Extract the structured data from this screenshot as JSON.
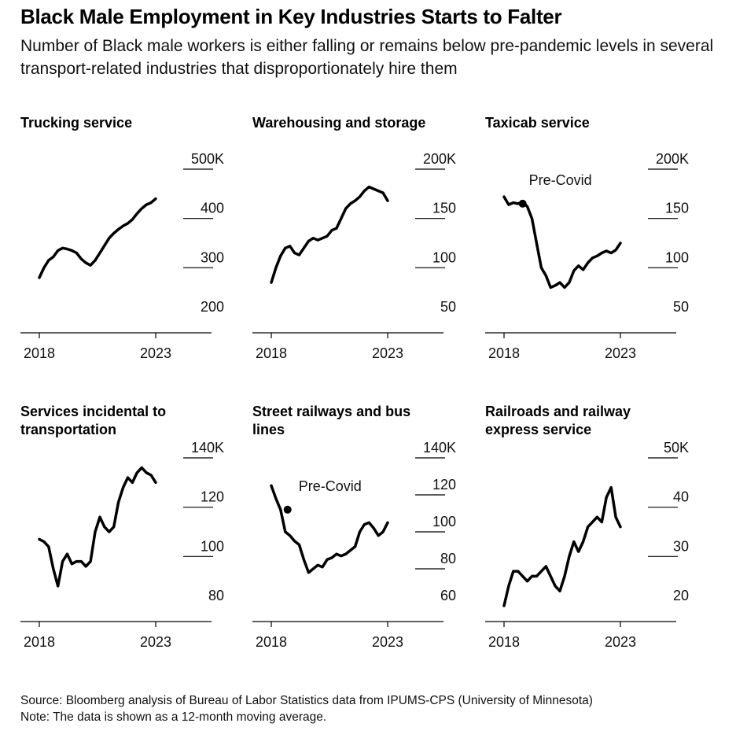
{
  "title": "Black Male Employment in Key Industries Starts to Falter",
  "subtitle": "Number of Black male workers is either falling or remains below pre-pandemic levels in several transport-related industries that disproportionately hire them",
  "source": "Source: Bloomberg analysis of Bureau of Labor Statistics data from IPUMS-CPS (University of Minnesota)",
  "note": "Note: The data is shown as a 12-month moving average.",
  "chart_data": [
    {
      "type": "line",
      "title": "Trucking service",
      "x_ticks": [
        "2018",
        "2023"
      ],
      "y_ticks": [
        "200",
        "300",
        "400",
        "500K"
      ],
      "ylim": [
        200000,
        500000
      ],
      "xlim": [
        2018,
        2023
      ],
      "series": [
        {
          "x": [
            2018.0,
            2018.2,
            2018.4,
            2018.6,
            2018.8,
            2019.0,
            2019.2,
            2019.4,
            2019.6,
            2019.8,
            2020.0,
            2020.2,
            2020.4,
            2020.6,
            2020.8,
            2021.0,
            2021.2,
            2021.4,
            2021.6,
            2021.8,
            2022.0,
            2022.2,
            2022.4,
            2022.6,
            2022.8,
            2023.0
          ],
          "y": [
            280000,
            300000,
            315000,
            322000,
            335000,
            340000,
            338000,
            335000,
            330000,
            318000,
            310000,
            305000,
            315000,
            330000,
            345000,
            360000,
            370000,
            378000,
            385000,
            390000,
            398000,
            410000,
            420000,
            428000,
            432000,
            440000
          ]
        }
      ],
      "annotations": []
    },
    {
      "type": "line",
      "title": "Warehousing and storage",
      "x_ticks": [
        "2018",
        "2023"
      ],
      "y_ticks": [
        "50",
        "100",
        "150",
        "200K"
      ],
      "ylim": [
        50000,
        200000
      ],
      "xlim": [
        2018,
        2023
      ],
      "series": [
        {
          "x": [
            2018.0,
            2018.2,
            2018.4,
            2018.6,
            2018.8,
            2019.0,
            2019.2,
            2019.4,
            2019.6,
            2019.8,
            2020.0,
            2020.2,
            2020.4,
            2020.6,
            2020.8,
            2021.0,
            2021.2,
            2021.4,
            2021.6,
            2021.8,
            2022.0,
            2022.2,
            2022.4,
            2022.6,
            2022.8,
            2023.0
          ],
          "y": [
            85000,
            100000,
            112000,
            120000,
            122000,
            115000,
            113000,
            120000,
            127000,
            130000,
            128000,
            130000,
            132000,
            138000,
            140000,
            150000,
            160000,
            165000,
            168000,
            172000,
            178000,
            182000,
            180000,
            178000,
            176000,
            168000
          ]
        }
      ],
      "annotations": []
    },
    {
      "type": "line",
      "title": "Taxicab service",
      "x_ticks": [
        "2018",
        "2023"
      ],
      "y_ticks": [
        "50",
        "100",
        "150",
        "200K"
      ],
      "ylim": [
        50000,
        200000
      ],
      "xlim": [
        2018,
        2023
      ],
      "series": [
        {
          "x": [
            2018.0,
            2018.2,
            2018.4,
            2018.6,
            2018.8,
            2019.0,
            2019.2,
            2019.4,
            2019.6,
            2019.8,
            2020.0,
            2020.2,
            2020.4,
            2020.6,
            2020.8,
            2021.0,
            2021.2,
            2021.4,
            2021.6,
            2021.8,
            2022.0,
            2022.2,
            2022.4,
            2022.6,
            2022.8,
            2023.0
          ],
          "y": [
            172000,
            164000,
            166000,
            165000,
            167000,
            162000,
            150000,
            125000,
            100000,
            92000,
            80000,
            82000,
            85000,
            80000,
            85000,
            97000,
            102000,
            98000,
            105000,
            110000,
            112000,
            115000,
            117000,
            115000,
            118000,
            125000
          ]
        }
      ],
      "annotations": [
        {
          "text": "Pre-Covid",
          "x": 2018.8,
          "y": 165000
        }
      ]
    },
    {
      "type": "line",
      "title": "Services incidental to transportation",
      "x_ticks": [
        "2018",
        "2023"
      ],
      "y_ticks": [
        "80",
        "100",
        "120",
        "140K"
      ],
      "ylim": [
        80000,
        140000
      ],
      "xlim": [
        2018,
        2023
      ],
      "series": [
        {
          "x": [
            2018.0,
            2018.2,
            2018.4,
            2018.6,
            2018.8,
            2019.0,
            2019.2,
            2019.4,
            2019.6,
            2019.8,
            2020.0,
            2020.2,
            2020.4,
            2020.6,
            2020.8,
            2021.0,
            2021.2,
            2021.4,
            2021.6,
            2021.8,
            2022.0,
            2022.2,
            2022.4,
            2022.6,
            2022.8,
            2023.0
          ],
          "y": [
            107000,
            106000,
            104000,
            95000,
            88000,
            98000,
            101000,
            97000,
            98000,
            98000,
            96000,
            98000,
            110000,
            116000,
            112000,
            110000,
            112000,
            122000,
            128000,
            132000,
            130000,
            134000,
            136000,
            134000,
            133000,
            130000
          ]
        }
      ],
      "annotations": []
    },
    {
      "type": "line",
      "title": "Street railways and bus lines",
      "x_ticks": [
        "2018",
        "2023"
      ],
      "y_ticks": [
        "60",
        "80",
        "100",
        "120",
        "140K"
      ],
      "ylim": [
        60000,
        140000
      ],
      "xlim": [
        2018,
        2023
      ],
      "series": [
        {
          "x": [
            2018.0,
            2018.2,
            2018.4,
            2018.6,
            2018.8,
            2019.0,
            2019.2,
            2019.4,
            2019.6,
            2019.8,
            2020.0,
            2020.2,
            2020.4,
            2020.6,
            2020.8,
            2021.0,
            2021.2,
            2021.4,
            2021.6,
            2021.8,
            2022.0,
            2022.2,
            2022.4,
            2022.6,
            2022.8,
            2023.0
          ],
          "y": [
            125000,
            118000,
            112000,
            100000,
            98000,
            95000,
            93000,
            85000,
            78000,
            80000,
            82000,
            81000,
            85000,
            86000,
            88000,
            87000,
            88000,
            90000,
            92000,
            100000,
            104000,
            105000,
            102000,
            98000,
            100000,
            105000
          ]
        }
      ],
      "annotations": [
        {
          "text": "Pre-Covid",
          "x": 2018.7,
          "y": 112000
        }
      ]
    },
    {
      "type": "line",
      "title": "Railroads and railway express service",
      "x_ticks": [
        "2018",
        "2023"
      ],
      "y_ticks": [
        "20",
        "30",
        "40",
        "50K"
      ],
      "ylim": [
        20000,
        50000
      ],
      "xlim": [
        2018,
        2023
      ],
      "series": [
        {
          "x": [
            2018.0,
            2018.2,
            2018.4,
            2018.6,
            2018.8,
            2019.0,
            2019.2,
            2019.4,
            2019.6,
            2019.8,
            2020.0,
            2020.2,
            2020.4,
            2020.6,
            2020.8,
            2021.0,
            2021.2,
            2021.4,
            2021.6,
            2021.8,
            2022.0,
            2022.2,
            2022.4,
            2022.6,
            2022.8,
            2023.0
          ],
          "y": [
            20000,
            24000,
            27000,
            27000,
            26000,
            25000,
            26000,
            26000,
            27000,
            28000,
            26000,
            24000,
            23000,
            26000,
            30000,
            33000,
            31000,
            33000,
            36000,
            37000,
            38000,
            37000,
            42000,
            44000,
            38000,
            36000
          ]
        }
      ],
      "annotations": []
    }
  ]
}
